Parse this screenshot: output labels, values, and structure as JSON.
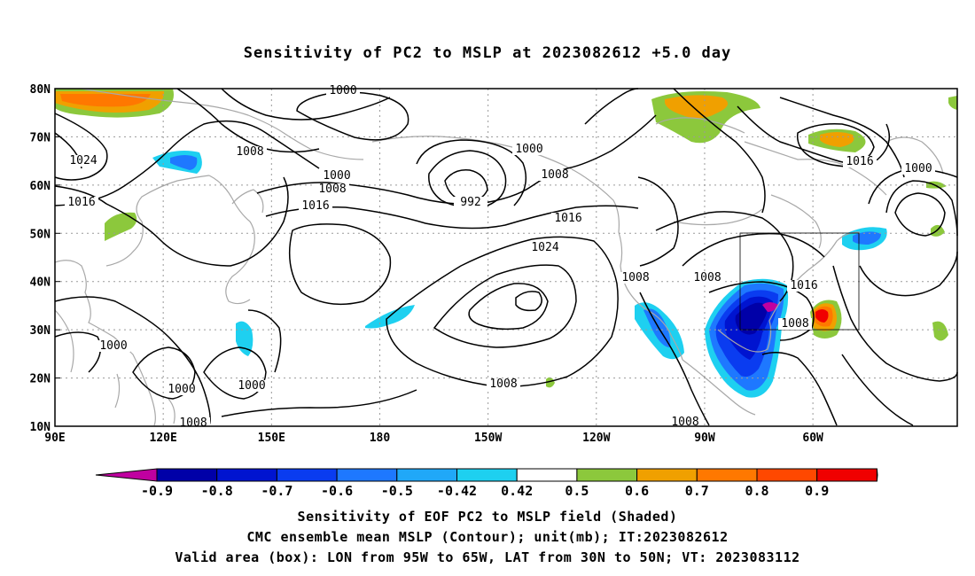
{
  "title": "Sensitivity of PC2 to MSLP at 2023082612 +5.0 day",
  "lat_labels": [
    "80N",
    "70N",
    "60N",
    "50N",
    "40N",
    "30N",
    "20N",
    "10N"
  ],
  "lon_labels": [
    "90E",
    "120E",
    "150E",
    "180",
    "150W",
    "120W",
    "90W",
    "60W"
  ],
  "colorbar": {
    "labels": [
      "-0.9",
      "-0.8",
      "-0.7",
      "-0.6",
      "-0.5",
      "-0.42",
      "0.42",
      "0.5",
      "0.6",
      "0.7",
      "0.8",
      "0.9"
    ],
    "colors": [
      "#c000a0",
      "#0000a8",
      "#0014d0",
      "#0a3cf0",
      "#1e78ff",
      "#20a8f8",
      "#1ed0f0",
      "#ffffff",
      "#8cc83c",
      "#f0a000",
      "#ff7800",
      "#ff4800",
      "#f00000",
      "#f0a0c8"
    ]
  },
  "contour_labels": [
    {
      "text": "1000"
    },
    {
      "text": "1024"
    },
    {
      "text": "1008"
    },
    {
      "text": "1016"
    },
    {
      "text": "1000"
    },
    {
      "text": "1008"
    },
    {
      "text": "1016"
    },
    {
      "text": "992"
    },
    {
      "text": "1000"
    },
    {
      "text": "1008"
    },
    {
      "text": "1016"
    },
    {
      "text": "1024"
    },
    {
      "text": "1008"
    },
    {
      "text": "1008"
    },
    {
      "text": "1016"
    },
    {
      "text": "1008"
    },
    {
      "text": "1000"
    },
    {
      "text": "1000"
    },
    {
      "text": "1000"
    },
    {
      "text": "1000"
    },
    {
      "text": "1016"
    },
    {
      "text": "1008"
    },
    {
      "text": "1008"
    },
    {
      "text": "1008"
    }
  ],
  "valid_box": {
    "lon_min": "95W",
    "lon_max": "65W",
    "lat_min": "30N",
    "lat_max": "50N"
  },
  "footer": [
    "Sensitivity of EOF PC2 to MSLP field (Shaded)",
    "CMC ensemble mean MSLP (Contour); unit(mb); IT:2023082612",
    "Valid area (box): LON from 95W to 65W, LAT from 30N to 50N; VT: 2023083112"
  ]
}
